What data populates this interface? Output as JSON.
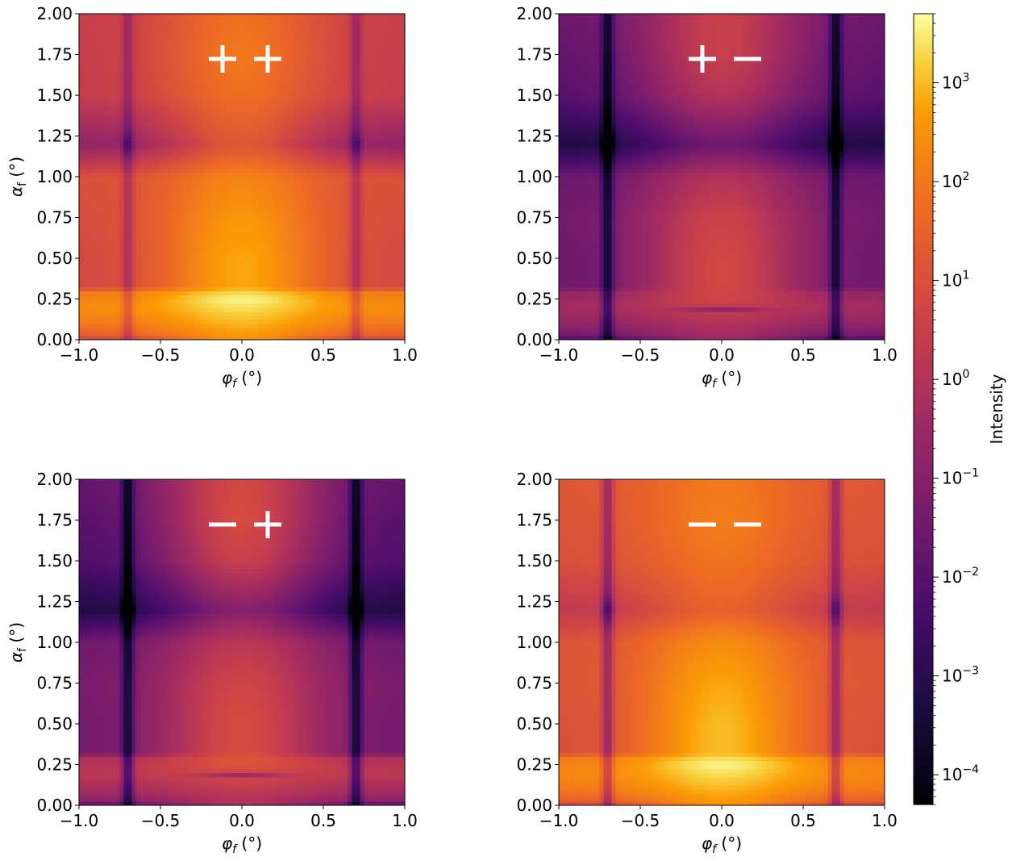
{
  "chart_data": [
    {
      "type": "heatmap",
      "panel_label": "+ +",
      "xlabel": "φf (°)",
      "ylabel": "αf (°)",
      "xlim": [
        -1.0,
        1.0
      ],
      "ylim": [
        0.0,
        2.0
      ],
      "xticks": [
        "−1.0",
        "−0.5",
        "0.0",
        "0.5",
        "1.0"
      ],
      "yticks": [
        "0.00",
        "0.25",
        "0.50",
        "0.75",
        "1.00",
        "1.25",
        "1.50",
        "1.75",
        "2.00"
      ],
      "log10_intensity": {
        "background_vertical_profile": [
          [
            0.0,
            0.2
          ],
          [
            0.02,
            1.3
          ],
          [
            0.1,
            2.0
          ],
          [
            0.2,
            2.4
          ],
          [
            0.3,
            2.0
          ],
          [
            0.32,
            0.8
          ],
          [
            0.5,
            0.8
          ],
          [
            0.75,
            0.9
          ],
          [
            1.0,
            1.0
          ],
          [
            1.2,
            -0.8
          ],
          [
            1.5,
            0.4
          ],
          [
            2.0,
            0.5
          ]
        ],
        "central_lobe_peak": [
          [
            0.0,
            2.5
          ],
          [
            0.25,
            3.6
          ],
          [
            0.3,
            3.2
          ],
          [
            0.32,
            2.8
          ],
          [
            0.5,
            2.8
          ],
          [
            0.75,
            2.6
          ],
          [
            1.0,
            2.2
          ],
          [
            1.2,
            1.2
          ],
          [
            1.5,
            1.8
          ],
          [
            1.75,
            2.0
          ],
          [
            2.0,
            1.8
          ]
        ],
        "dark_columns_at_phi": [
          -0.7,
          0.7
        ],
        "column_depth": 1.2,
        "null_at_alpha": null
      }
    },
    {
      "type": "heatmap",
      "panel_label": "+ −",
      "xlabel": "φf (°)",
      "ylabel": "",
      "xlim": [
        -1.0,
        1.0
      ],
      "ylim": [
        0.0,
        2.0
      ],
      "xticks": [
        "−1.0",
        "−0.5",
        "0.0",
        "0.5",
        "1.0"
      ],
      "yticks": [
        "0.00",
        "0.25",
        "0.50",
        "0.75",
        "1.00",
        "1.25",
        "1.50",
        "1.75",
        "2.00"
      ],
      "log10_intensity": {
        "background_vertical_profile": [
          [
            0.0,
            -3.0
          ],
          [
            0.02,
            -1.5
          ],
          [
            0.1,
            -0.8
          ],
          [
            0.2,
            -0.3
          ],
          [
            0.3,
            -0.8
          ],
          [
            0.32,
            -1.5
          ],
          [
            0.5,
            -1.5
          ],
          [
            0.75,
            -1.4
          ],
          [
            1.0,
            -1.6
          ],
          [
            1.2,
            -3.3
          ],
          [
            1.5,
            -2.0
          ],
          [
            2.0,
            -1.6
          ]
        ],
        "central_lobe_peak": [
          [
            0.0,
            -0.5
          ],
          [
            0.25,
            0.7
          ],
          [
            0.3,
            0.7
          ],
          [
            0.32,
            0.8
          ],
          [
            0.5,
            0.8
          ],
          [
            0.75,
            0.6
          ],
          [
            1.0,
            0.0
          ],
          [
            1.2,
            -1.5
          ],
          [
            1.5,
            0.0
          ],
          [
            1.75,
            0.5
          ],
          [
            2.0,
            0.5
          ]
        ],
        "dark_columns_at_phi": [
          -0.7,
          0.7
        ],
        "column_depth": 2.5,
        "null_at_alpha": 0.19
      }
    },
    {
      "type": "heatmap",
      "panel_label": "− +",
      "xlabel": "φf (°)",
      "ylabel": "αf (°)",
      "xlim": [
        -1.0,
        1.0
      ],
      "ylim": [
        0.0,
        2.0
      ],
      "xticks": [
        "−1.0",
        "−0.5",
        "0.0",
        "0.5",
        "1.0"
      ],
      "yticks": [
        "0.00",
        "0.25",
        "0.50",
        "0.75",
        "1.00",
        "1.25",
        "1.50",
        "1.75",
        "2.00"
      ],
      "log10_intensity": {
        "background_vertical_profile": [
          [
            0.0,
            -2.5
          ],
          [
            0.02,
            -1.0
          ],
          [
            0.1,
            -0.3
          ],
          [
            0.2,
            0.2
          ],
          [
            0.3,
            -0.2
          ],
          [
            0.32,
            -1.4
          ],
          [
            0.5,
            -1.4
          ],
          [
            0.75,
            -1.3
          ],
          [
            1.0,
            -1.5
          ],
          [
            1.2,
            -3.3
          ],
          [
            1.5,
            -2.2
          ],
          [
            2.0,
            -1.8
          ]
        ],
        "central_lobe_peak": [
          [
            0.0,
            -0.2
          ],
          [
            0.25,
            1.1
          ],
          [
            0.3,
            1.1
          ],
          [
            0.32,
            0.9
          ],
          [
            0.5,
            0.9
          ],
          [
            0.75,
            0.7
          ],
          [
            1.0,
            0.2
          ],
          [
            1.2,
            -1.0
          ],
          [
            1.5,
            0.5
          ],
          [
            1.75,
            0.9
          ],
          [
            2.0,
            0.8
          ]
        ],
        "dark_columns_at_phi": [
          -0.7,
          0.7
        ],
        "column_depth": 2.6,
        "null_at_alpha": 0.19
      }
    },
    {
      "type": "heatmap",
      "panel_label": "− −",
      "xlabel": "φf (°)",
      "ylabel": "",
      "xlim": [
        -1.0,
        1.0
      ],
      "ylim": [
        0.0,
        2.0
      ],
      "xticks": [
        "−1.0",
        "−0.5",
        "0.0",
        "0.5",
        "1.0"
      ],
      "yticks": [
        "0.00",
        "0.25",
        "0.50",
        "0.75",
        "1.00",
        "1.25",
        "1.50",
        "1.75",
        "2.00"
      ],
      "log10_intensity": {
        "background_vertical_profile": [
          [
            0.0,
            0.2
          ],
          [
            0.02,
            1.3
          ],
          [
            0.1,
            2.0
          ],
          [
            0.2,
            2.3
          ],
          [
            0.3,
            2.0
          ],
          [
            0.32,
            1.0
          ],
          [
            0.5,
            1.0
          ],
          [
            0.75,
            1.1
          ],
          [
            1.0,
            1.1
          ],
          [
            1.2,
            0.3
          ],
          [
            1.5,
            1.0
          ],
          [
            2.0,
            1.2
          ]
        ],
        "central_lobe_peak": [
          [
            0.0,
            2.5
          ],
          [
            0.25,
            3.6
          ],
          [
            0.3,
            3.3
          ],
          [
            0.32,
            3.0
          ],
          [
            0.5,
            3.0
          ],
          [
            0.75,
            2.8
          ],
          [
            1.0,
            2.4
          ],
          [
            1.2,
            1.5
          ],
          [
            1.5,
            1.9
          ],
          [
            1.75,
            2.1
          ],
          [
            2.0,
            2.0
          ]
        ],
        "dark_columns_at_phi": [
          -0.7,
          0.7
        ],
        "column_depth": 1.8,
        "null_at_alpha": null
      }
    }
  ],
  "colorbar": {
    "label": "Intensity",
    "scale": "log",
    "colormap": "inferno",
    "range": [
      5e-05,
      5000
    ],
    "ticks": [
      {
        "value": 0.0001,
        "base": "10",
        "exp": "−4"
      },
      {
        "value": 0.001,
        "base": "10",
        "exp": "−3"
      },
      {
        "value": 0.01,
        "base": "10",
        "exp": "−2"
      },
      {
        "value": 0.1,
        "base": "10",
        "exp": "−1"
      },
      {
        "value": 1,
        "base": "10",
        "exp": "0"
      },
      {
        "value": 10,
        "base": "10",
        "exp": "1"
      },
      {
        "value": 100,
        "base": "10",
        "exp": "2"
      },
      {
        "value": 1000,
        "base": "10",
        "exp": "3"
      }
    ]
  }
}
